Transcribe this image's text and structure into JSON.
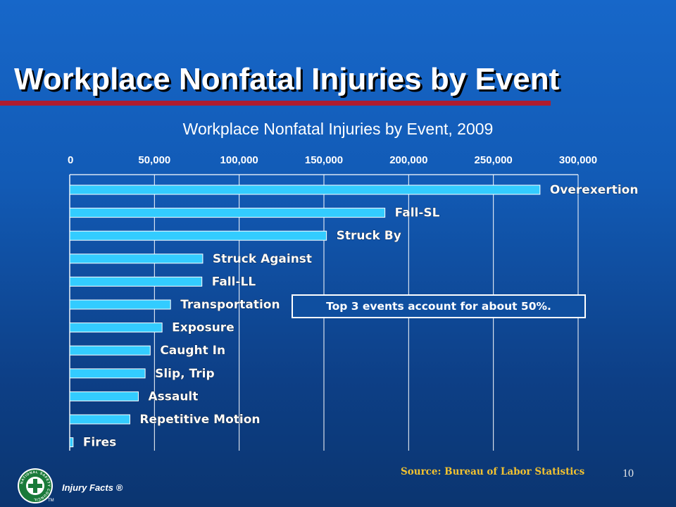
{
  "slide": {
    "title": "Workplace Nonfatal Injuries by Event",
    "callout": "Top 3 events account for about 50%.",
    "source": "Source: Bureau of Labor Statistics",
    "page_number": "10",
    "footer_brand": "Injury Facts ®",
    "logo_text": "NATIONAL SAFETY COUNCIL",
    "logo_tm": "TM"
  },
  "colors": {
    "title_rule": "#b01c2e",
    "bar_fill": "#33ccff",
    "source_text": "#f2c230"
  },
  "chart_data": {
    "type": "bar",
    "orientation": "horizontal",
    "title": "Workplace Nonfatal Injuries by Event, 2009",
    "categories": [
      "Overexertion",
      "Fall-SL",
      "Struck By",
      "Struck Against",
      "Fall-LL",
      "Transportation",
      "Exposure",
      "Caught In",
      "Slip, Trip",
      "Assault",
      "Repetitive Motion",
      "Fires"
    ],
    "values": [
      277500,
      186000,
      151500,
      78500,
      78000,
      59500,
      54500,
      47500,
      44500,
      40500,
      35500,
      2000
    ],
    "xlim": [
      0,
      300000
    ],
    "xticks": [
      "0",
      "50,000",
      "100,000",
      "150,000",
      "200,000",
      "250,000",
      "300,000"
    ],
    "xaxis_position": "top",
    "grid": "vertical",
    "legend": "none",
    "xlabel": "",
    "ylabel": ""
  }
}
